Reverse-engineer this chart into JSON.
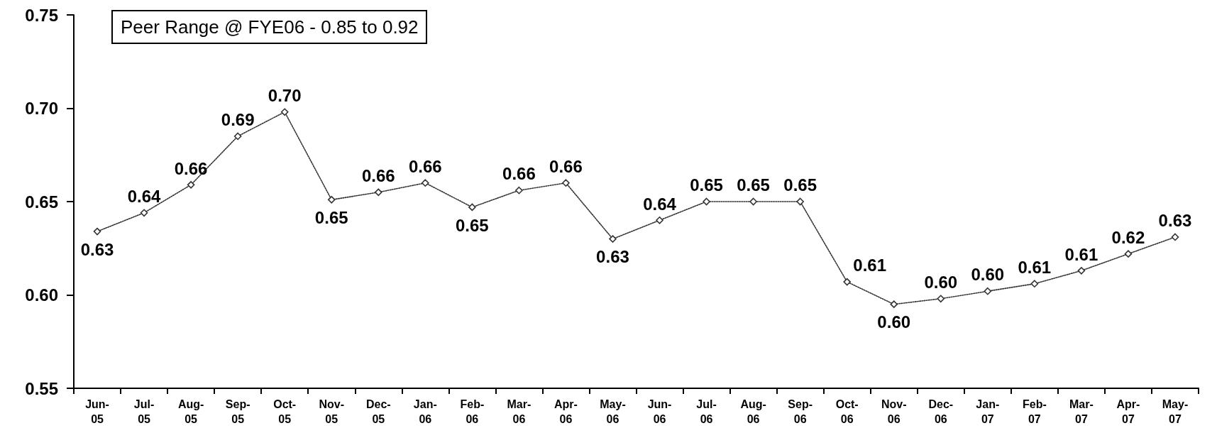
{
  "chart_data": {
    "type": "line",
    "categories": [
      "Jun-05",
      "Jul-05",
      "Aug-05",
      "Sep-05",
      "Oct-05",
      "Nov-05",
      "Dec-05",
      "Jan-06",
      "Feb-06",
      "Mar-06",
      "Apr-06",
      "May-06",
      "Jun-06",
      "Jul-06",
      "Aug-06",
      "Sep-06",
      "Oct-06",
      "Nov-06",
      "Dec-06",
      "Jan-07",
      "Feb-07",
      "Mar-07",
      "Apr-07",
      "May-07"
    ],
    "values": [
      0.634,
      0.644,
      0.659,
      0.685,
      0.698,
      0.651,
      0.655,
      0.66,
      0.647,
      0.656,
      0.66,
      0.63,
      0.64,
      0.65,
      0.65,
      0.65,
      0.607,
      0.595,
      0.598,
      0.602,
      0.606,
      0.613,
      0.622,
      0.631
    ],
    "value_labels": [
      "0.63",
      "0.64",
      "0.66",
      "0.69",
      "0.70",
      "0.65",
      "0.66",
      "0.66",
      "0.65",
      "0.66",
      "0.66",
      "0.63",
      "0.64",
      "0.65",
      "0.65",
      "0.65",
      "0.61",
      "0.60",
      "0.60",
      "0.60",
      "0.61",
      "0.61",
      "0.62",
      "0.63"
    ],
    "color": "#333333",
    "marker": "diamond",
    "line_style": "dotted",
    "ylim": [
      0.55,
      0.75
    ],
    "yticks": [
      0.55,
      {
        "value": 0.6,
        "label": "0.60"
      },
      0.65,
      {
        "value": 0.7,
        "label": "0.70"
      },
      0.75
    ],
    "annotations": [
      "Peer Range @ FYE06 - 0.85 to 0.92"
    ]
  }
}
